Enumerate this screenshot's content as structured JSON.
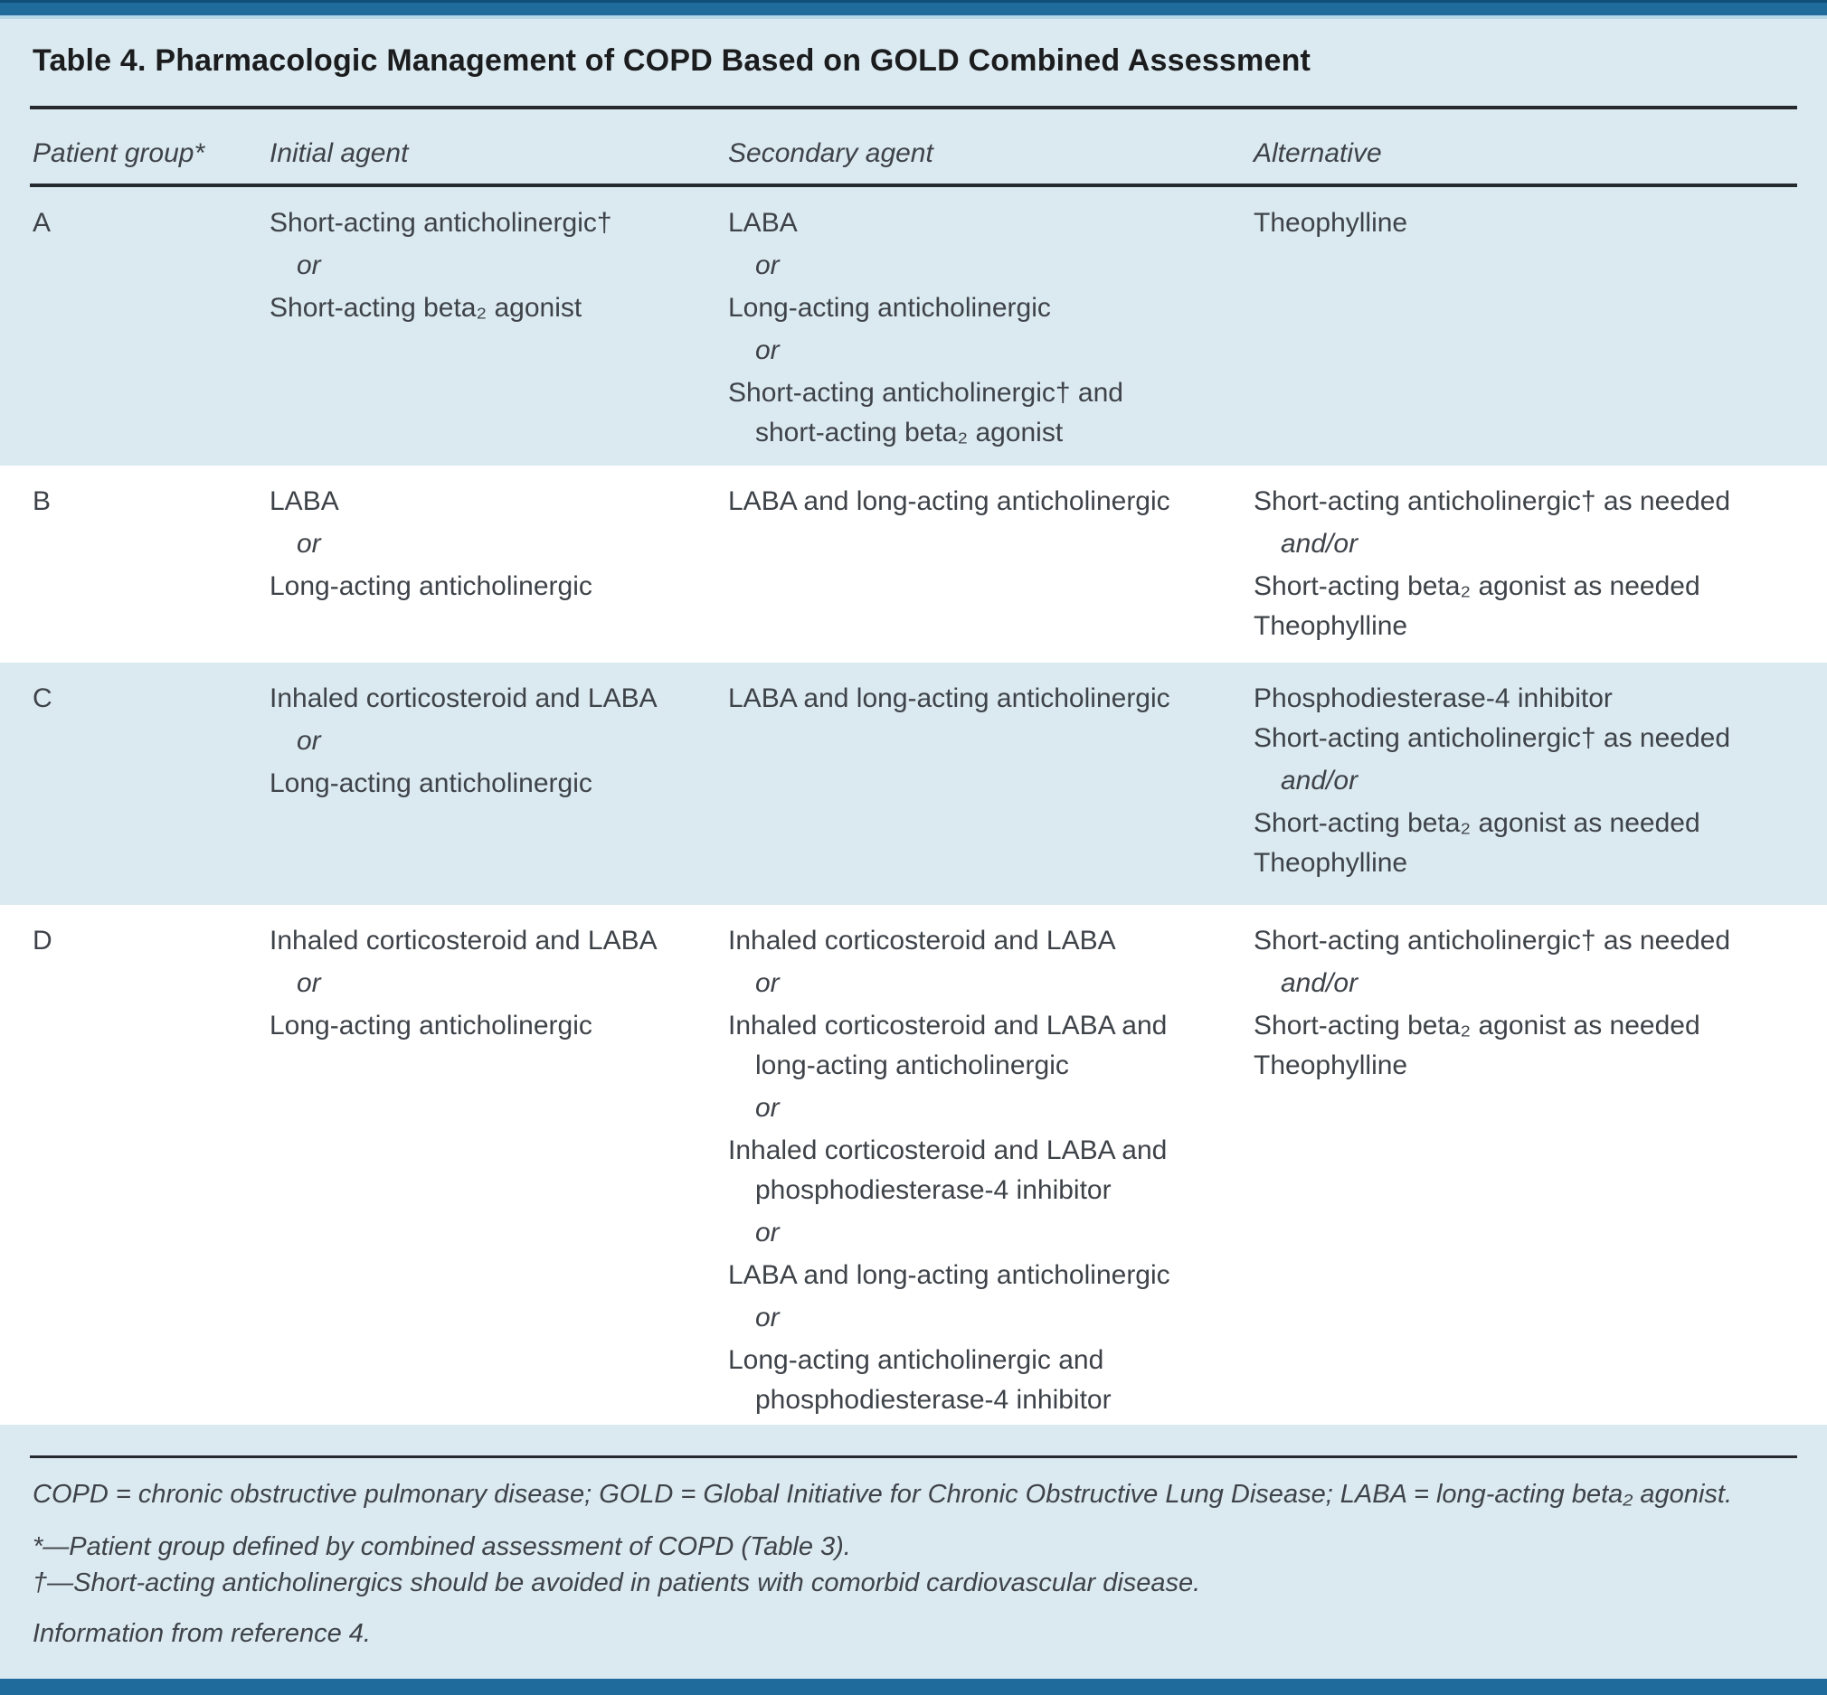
{
  "title": "Table 4. Pharmacologic Management of COPD Based on GOLD Combined Assessment",
  "columns": {
    "patient_group": "Patient group*",
    "initial_agent": "Initial agent",
    "secondary_agent": "Secondary agent",
    "alternative": "Alternative"
  },
  "rows": [
    {
      "group": "A",
      "initial_agent": [
        [
          "item",
          "Short-acting anticholinergic†"
        ],
        [
          "or",
          "or"
        ],
        [
          "item",
          "Short-acting beta₂ agonist"
        ]
      ],
      "secondary_agent": [
        [
          "item",
          "LABA"
        ],
        [
          "or",
          "or"
        ],
        [
          "item",
          "Long-acting anticholinergic"
        ],
        [
          "or",
          "or"
        ],
        [
          "item",
          "Short-acting anticholinergic† and"
        ],
        [
          "cont",
          "short-acting beta₂ agonist"
        ]
      ],
      "alternative": [
        [
          "item",
          "Theophylline"
        ]
      ]
    },
    {
      "group": "B",
      "initial_agent": [
        [
          "item",
          "LABA"
        ],
        [
          "or",
          "or"
        ],
        [
          "item",
          "Long-acting anticholinergic"
        ]
      ],
      "secondary_agent": [
        [
          "item",
          "LABA and long-acting anticholinergic"
        ]
      ],
      "alternative": [
        [
          "item",
          "Short-acting anticholinergic† as needed"
        ],
        [
          "or",
          "and/or"
        ],
        [
          "item",
          "Short-acting beta₂ agonist as needed"
        ],
        [
          "item",
          "Theophylline"
        ]
      ]
    },
    {
      "group": "C",
      "initial_agent": [
        [
          "item",
          "Inhaled corticosteroid and LABA"
        ],
        [
          "or",
          "or"
        ],
        [
          "item",
          "Long-acting anticholinergic"
        ]
      ],
      "secondary_agent": [
        [
          "item",
          "LABA and long-acting anticholinergic"
        ]
      ],
      "alternative": [
        [
          "item",
          "Phosphodiesterase-4 inhibitor"
        ],
        [
          "item",
          "Short-acting anticholinergic† as needed"
        ],
        [
          "or",
          "and/or"
        ],
        [
          "item",
          "Short-acting beta₂ agonist as needed"
        ],
        [
          "item",
          "Theophylline"
        ]
      ]
    },
    {
      "group": "D",
      "initial_agent": [
        [
          "item",
          "Inhaled corticosteroid and LABA"
        ],
        [
          "or",
          "or"
        ],
        [
          "item",
          "Long-acting anticholinergic"
        ]
      ],
      "secondary_agent": [
        [
          "item",
          "Inhaled corticosteroid and LABA"
        ],
        [
          "or",
          "or"
        ],
        [
          "item",
          "Inhaled corticosteroid and LABA and"
        ],
        [
          "cont",
          "long-acting anticholinergic"
        ],
        [
          "or",
          "or"
        ],
        [
          "item",
          "Inhaled corticosteroid and LABA and"
        ],
        [
          "cont",
          "phosphodiesterase-4 inhibitor"
        ],
        [
          "or",
          "or"
        ],
        [
          "item",
          "LABA and long-acting anticholinergic"
        ],
        [
          "or",
          "or"
        ],
        [
          "item",
          "Long-acting anticholinergic and"
        ],
        [
          "cont",
          "phosphodiesterase-4 inhibitor"
        ]
      ],
      "alternative": [
        [
          "item",
          "Short-acting anticholinergic† as needed"
        ],
        [
          "or",
          "and/or"
        ],
        [
          "item",
          "Short-acting beta₂ agonist as needed"
        ],
        [
          "item",
          "Theophylline"
        ]
      ]
    }
  ],
  "footnotes": {
    "abbreviations": "COPD = chronic obstructive pulmonary disease; GOLD = Global Initiative for Chronic Obstructive Lung Disease; LABA = long-acting beta₂ agonist.",
    "asterisk": "*—Patient group defined by combined assessment of COPD (Table 3).",
    "dagger": "†—Short-acting anticholinergics should be avoided in patients with comorbid cardiovascular disease.",
    "source": "Information from reference 4."
  },
  "colors": {
    "accent_bar_blue": "#1e6b9c",
    "accent_bar_dark_line": "#0e4e79",
    "pale_strip": "#b5d6e5",
    "background_light_blue": "#dbe9f0",
    "row_band_white": "#ffffff",
    "rule_dark": "#26292e",
    "body_text": "#3e4349",
    "title_text": "#1b1c1e"
  }
}
